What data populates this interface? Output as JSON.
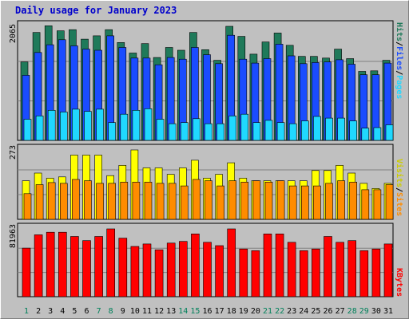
{
  "title": "Daily usage for January 2023",
  "chart_data": [
    {
      "type": "bar",
      "panel": "top",
      "ymax_label": "2065",
      "ylim": [
        0,
        2065
      ],
      "categories": [
        "1",
        "2",
        "3",
        "4",
        "5",
        "6",
        "7",
        "8",
        "9",
        "10",
        "11",
        "12",
        "13",
        "14",
        "15",
        "16",
        "17",
        "18",
        "19",
        "20",
        "21",
        "22",
        "23",
        "24",
        "25",
        "26",
        "27",
        "28",
        "29",
        "30",
        "31"
      ],
      "series": [
        {
          "name": "Hits",
          "color": "#1f7a5a",
          "values": [
            1410,
            1940,
            2060,
            1970,
            1990,
            1820,
            1880,
            1990,
            1760,
            1570,
            1740,
            1490,
            1670,
            1620,
            1940,
            1630,
            1440,
            2050,
            1870,
            1550,
            1770,
            1930,
            1710,
            1510,
            1510,
            1480,
            1640,
            1470,
            1240,
            1250,
            1440
          ]
        },
        {
          "name": "Files",
          "color": "#1a4cff",
          "values": [
            1170,
            1580,
            1720,
            1810,
            1700,
            1640,
            1620,
            1880,
            1670,
            1480,
            1480,
            1360,
            1490,
            1460,
            1670,
            1540,
            1380,
            1890,
            1460,
            1390,
            1470,
            1730,
            1520,
            1380,
            1400,
            1410,
            1450,
            1370,
            1180,
            1180,
            1390
          ]
        },
        {
          "name": "Pages",
          "color": "#20d8ff",
          "values": [
            380,
            440,
            540,
            510,
            560,
            520,
            560,
            320,
            470,
            540,
            570,
            380,
            300,
            320,
            390,
            300,
            300,
            440,
            470,
            320,
            360,
            320,
            300,
            350,
            430,
            400,
            400,
            350,
            220,
            230,
            280
          ]
        }
      ]
    },
    {
      "type": "bar",
      "panel": "middle",
      "ymax_label": "273",
      "ylim": [
        0,
        273
      ],
      "series": [
        {
          "name": "Visits",
          "color": "#ffff00",
          "values": [
            150,
            180,
            160,
            165,
            250,
            250,
            250,
            170,
            210,
            270,
            200,
            200,
            175,
            200,
            230,
            160,
            175,
            220,
            160,
            150,
            150,
            150,
            150,
            150,
            190,
            190,
            210,
            180,
            140,
            120,
            140
          ]
        },
        {
          "name": "Sites",
          "color": "#ff8c00",
          "values": [
            100,
            135,
            143,
            140,
            155,
            150,
            140,
            140,
            145,
            145,
            145,
            140,
            140,
            130,
            155,
            150,
            130,
            150,
            145,
            150,
            145,
            150,
            130,
            130,
            130,
            140,
            150,
            145,
            115,
            115,
            135
          ]
        }
      ]
    },
    {
      "type": "bar",
      "panel": "bottom",
      "ymax_label": "81963",
      "ylim": [
        0,
        81963
      ],
      "series": [
        {
          "name": "KBytes",
          "color": "#ff0000",
          "values": [
            58000,
            74000,
            77000,
            77000,
            72000,
            67000,
            72000,
            81000,
            70000,
            60000,
            63000,
            56000,
            64000,
            66000,
            75000,
            65000,
            61000,
            81000,
            57000,
            55000,
            75000,
            75000,
            65000,
            55000,
            57000,
            72000,
            65000,
            67000,
            55000,
            57000,
            63000
          ]
        }
      ]
    }
  ],
  "legend": {
    "top": [
      {
        "text": "Hits",
        "color": "#1f7a5a"
      },
      {
        "text": "/",
        "color": "#000000"
      },
      {
        "text": "Files",
        "color": "#1a4cff"
      },
      {
        "text": "/",
        "color": "#000000"
      },
      {
        "text": "Pages",
        "color": "#20d8ff"
      }
    ],
    "middle": [
      {
        "text": "Visits",
        "color": "#cccc00"
      },
      {
        "text": "/",
        "color": "#000000"
      },
      {
        "text": "Sites",
        "color": "#ff8c00"
      }
    ],
    "bottom": [
      {
        "text": "KBytes",
        "color": "#ff0000"
      }
    ]
  },
  "x_labels": [
    "1",
    "2",
    "3",
    "4",
    "5",
    "6",
    "7",
    "8",
    "9",
    "10",
    "11",
    "12",
    "13",
    "14",
    "15",
    "16",
    "17",
    "18",
    "19",
    "20",
    "21",
    "22",
    "23",
    "24",
    "25",
    "26",
    "27",
    "28",
    "29",
    "30",
    "31"
  ],
  "weekend_days": [
    "1",
    "7",
    "8",
    "14",
    "15",
    "21",
    "22",
    "28",
    "29"
  ],
  "weekday_color": "#000000",
  "weekend_color": "#00805a"
}
